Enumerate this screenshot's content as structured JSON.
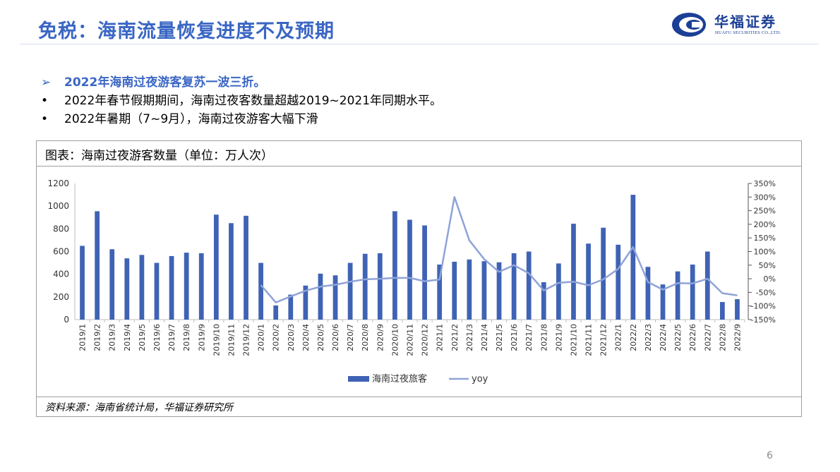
{
  "slide": {
    "title": "免税：海南流量恢复进度不及预期",
    "page_number": "6",
    "accent_color": "#3a66c4"
  },
  "logo": {
    "name": "华福证券",
    "subtitle": "HUAFU SECURITIES CO.,LTD."
  },
  "bullets": [
    {
      "mark": "➢",
      "text": "2022年海南过夜游客复苏一波三折。",
      "emphasis": true
    },
    {
      "mark": "•",
      "text": "2022年春节假期期间，海南过夜客数量超越2019~2021年同期水平。",
      "emphasis": false
    },
    {
      "mark": "•",
      "text": "2022年暑期（7~9月），海南过夜游客大幅下滑",
      "emphasis": false
    }
  ],
  "chart_box": {
    "title": "图表：海南过夜游客数量（单位：万人次）",
    "source": "资料来源：海南省统计局，华福证券研究所"
  },
  "chart_data": {
    "type": "bar",
    "categories": [
      "2019/1",
      "2019/2",
      "2019/3",
      "2019/4",
      "2019/5",
      "2019/6",
      "2019/7",
      "2019/8",
      "2019/9",
      "2019/10",
      "2019/11",
      "2019/12",
      "2020/1",
      "2020/2",
      "2020/3",
      "2020/4",
      "2020/5",
      "2020/6",
      "2020/7",
      "2020/8",
      "2020/9",
      "2020/10",
      "2020/11",
      "2020/12",
      "2021/1",
      "2021/2",
      "2021/3",
      "2021/4",
      "2021/5",
      "2021/6",
      "2021/7",
      "2021/8",
      "2021/9",
      "2021/10",
      "2021/11",
      "2021/12",
      "2022/1",
      "2022/2",
      "2022/3",
      "2022/4",
      "2022/5",
      "2022/6",
      "2022/7",
      "2022/8",
      "2022/9"
    ],
    "series": [
      {
        "name": "海南过夜旅客",
        "type": "bar",
        "axis": "left",
        "color": "#3f63b4",
        "values": [
          650,
          955,
          620,
          540,
          570,
          500,
          560,
          590,
          585,
          925,
          850,
          915,
          500,
          125,
          220,
          300,
          405,
          390,
          500,
          580,
          585,
          955,
          880,
          830,
          485,
          510,
          530,
          515,
          505,
          585,
          600,
          330,
          495,
          845,
          670,
          810,
          660,
          1100,
          465,
          310,
          425,
          485,
          600,
          155,
          180
        ]
      },
      {
        "name": "yoy",
        "type": "line",
        "axis": "right",
        "color": "#8fa3d8",
        "values": [
          null,
          null,
          null,
          null,
          null,
          null,
          null,
          null,
          null,
          null,
          null,
          null,
          -23,
          -87,
          -65,
          -44,
          -29,
          -22,
          -11,
          -2,
          0,
          3,
          3,
          -9,
          -3,
          300,
          141,
          72,
          25,
          50,
          20,
          -43,
          -15,
          -11,
          -24,
          -2,
          36,
          116,
          -12,
          -40,
          -16,
          -17,
          0,
          -53,
          -61
        ]
      }
    ],
    "y_left": {
      "min": 0,
      "max": 1200,
      "ticks": [
        0,
        200,
        400,
        600,
        800,
        1000,
        1200
      ]
    },
    "y_right": {
      "min": -150,
      "max": 350,
      "ticks": [
        -150,
        -100,
        -50,
        0,
        50,
        100,
        150,
        200,
        250,
        300,
        350
      ],
      "format": "percent"
    },
    "legend_position": "bottom",
    "grid": false
  }
}
